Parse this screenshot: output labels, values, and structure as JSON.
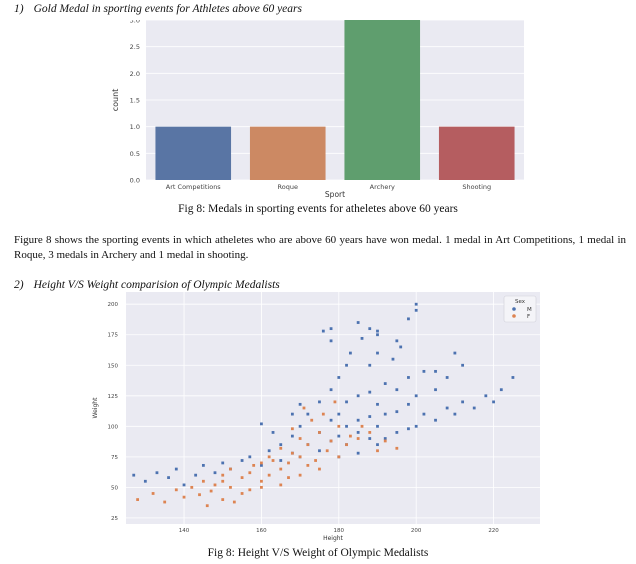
{
  "section1": {
    "number": "1)",
    "title": "Gold Medal in sporting events for Athletes above 60 years"
  },
  "figure1": {
    "caption": "Fig 8: Medals in sporting events for atheletes above 60 years"
  },
  "paragraph": "Figure 8 shows the sporting events in which atheletes who are above 60 years have won medal. 1 medal in Art Competitions, 1 medal in Roque, 3 medals in Archery and 1 medal in shooting.",
  "section2": {
    "number": "2)",
    "title": "Height V/S Weight comparision of Olympic Medalists"
  },
  "figure2": {
    "caption": "Fig 8: Height V/S Weight of Olympic Medalists"
  },
  "chart_data": [
    {
      "type": "bar",
      "categories": [
        "Art Competitions",
        "Roque",
        "Archery",
        "Shooting"
      ],
      "values": [
        1,
        1,
        3,
        1
      ],
      "xlabel": "Sport",
      "ylabel": "count",
      "ylim": [
        0,
        3.0
      ],
      "yticks": [
        "0.0",
        "0.5",
        "1.0",
        "1.5",
        "2.0",
        "2.5",
        "3.0"
      ],
      "grid": true,
      "colors": [
        "#5975a4",
        "#cc8963",
        "#5f9e6e",
        "#b55d60"
      ]
    },
    {
      "type": "scatter",
      "xlabel": "Height",
      "ylabel": "Weight",
      "xlim": [
        125,
        232
      ],
      "ylim": [
        20,
        210
      ],
      "xticks": [
        140,
        160,
        180,
        200,
        220
      ],
      "yticks": [
        25,
        50,
        75,
        100,
        125,
        150,
        175,
        200
      ],
      "grid": true,
      "legend": {
        "title": "Sex",
        "position": "top-right"
      },
      "series": [
        {
          "name": "M",
          "color": "#4c72b0",
          "x": [
            127,
            130,
            133,
            136,
            138,
            140,
            143,
            145,
            148,
            150,
            152,
            155,
            157,
            160,
            162,
            165,
            165,
            168,
            168,
            170,
            170,
            172,
            172,
            175,
            175,
            175,
            178,
            178,
            178,
            180,
            180,
            180,
            180,
            182,
            182,
            182,
            185,
            185,
            185,
            185,
            188,
            188,
            188,
            188,
            190,
            190,
            190,
            190,
            192,
            192,
            192,
            195,
            195,
            195,
            195,
            198,
            198,
            198,
            200,
            200,
            200,
            202,
            202,
            205,
            205,
            208,
            208,
            210,
            210,
            212,
            215,
            218,
            220,
            222,
            225,
            176,
            178,
            183,
            188,
            190,
            196,
            198,
            200,
            185,
            190,
            182,
            194,
            178,
            186,
            205,
            212,
            170,
            168,
            160,
            163
          ],
          "y": [
            60,
            55,
            62,
            58,
            65,
            52,
            60,
            68,
            62,
            70,
            65,
            72,
            75,
            68,
            80,
            72,
            85,
            78,
            92,
            75,
            100,
            85,
            110,
            80,
            95,
            120,
            88,
            105,
            130,
            75,
            92,
            110,
            140,
            85,
            100,
            120,
            95,
            78,
            105,
            125,
            150,
            90,
            108,
            128,
            160,
            85,
            100,
            118,
            90,
            110,
            135,
            95,
            112,
            130,
            170,
            98,
            118,
            140,
            100,
            125,
            195,
            110,
            145,
            105,
            130,
            115,
            140,
            110,
            160,
            120,
            115,
            125,
            120,
            130,
            140,
            178,
            170,
            160,
            180,
            178,
            165,
            188,
            200,
            185,
            175,
            150,
            155,
            180,
            172,
            145,
            150,
            118,
            110,
            102,
            95
          ]
        },
        {
          "name": "F",
          "color": "#dd8452",
          "x": [
            128,
            132,
            135,
            138,
            140,
            142,
            144,
            145,
            147,
            148,
            150,
            150,
            152,
            152,
            155,
            155,
            157,
            157,
            160,
            160,
            160,
            162,
            162,
            165,
            165,
            165,
            167,
            167,
            168,
            170,
            170,
            170,
            172,
            172,
            174,
            175,
            175,
            177,
            178,
            180,
            180,
            182,
            183,
            185,
            186,
            188,
            190,
            192,
            195,
            158,
            163,
            168,
            173,
            176,
            150,
            146,
            153,
            179,
            171
          ],
          "y": [
            40,
            45,
            38,
            48,
            42,
            50,
            44,
            55,
            47,
            52,
            40,
            60,
            50,
            65,
            45,
            58,
            62,
            48,
            55,
            70,
            50,
            60,
            75,
            52,
            65,
            82,
            58,
            70,
            78,
            60,
            75,
            90,
            68,
            85,
            72,
            65,
            95,
            80,
            88,
            75,
            100,
            85,
            92,
            90,
            100,
            95,
            80,
            88,
            82,
            68,
            72,
            98,
            105,
            110,
            55,
            35,
            38,
            120,
            115
          ]
        }
      ]
    }
  ]
}
